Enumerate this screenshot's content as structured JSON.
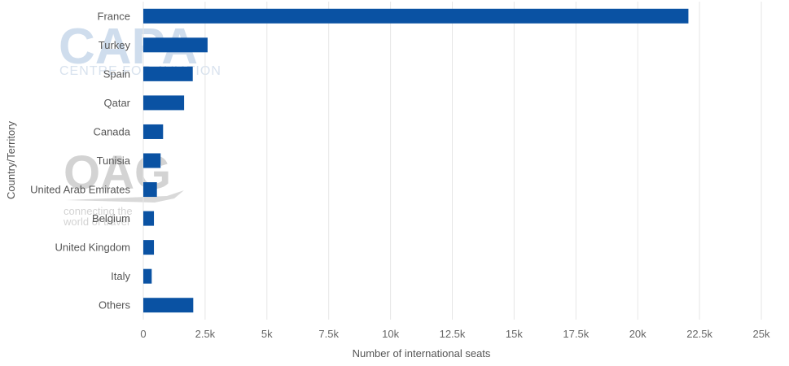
{
  "watermarks": {
    "capa_logo": "CAPA",
    "capa_tagline": "CENTRE FOR AVIATION",
    "oag_logo": "OAG",
    "oag_tagline_line1": "connecting the",
    "oag_tagline_line2": "world of travel"
  },
  "chart_data": {
    "type": "bar",
    "orientation": "horizontal",
    "categories": [
      "France",
      "Turkey",
      "Spain",
      "Qatar",
      "Canada",
      "Tunisia",
      "United Arab Emirates",
      "Belgium",
      "United Kingdom",
      "Italy",
      "Others"
    ],
    "values": [
      22050,
      2600,
      2000,
      1650,
      800,
      700,
      550,
      430,
      430,
      340,
      2020
    ],
    "xlabel": "Number of international seats",
    "ylabel": "Country/Territory",
    "xlim": [
      0,
      25000
    ],
    "xticks": [
      0,
      2500,
      5000,
      7500,
      10000,
      12500,
      15000,
      17500,
      20000,
      22500,
      25000
    ],
    "xtick_labels": [
      "0",
      "2.5k",
      "5k",
      "7.5k",
      "10k",
      "12.5k",
      "15k",
      "17.5k",
      "20k",
      "22.5k",
      "25k"
    ],
    "grid": "vertical",
    "bar_color": "#0a52a3"
  }
}
